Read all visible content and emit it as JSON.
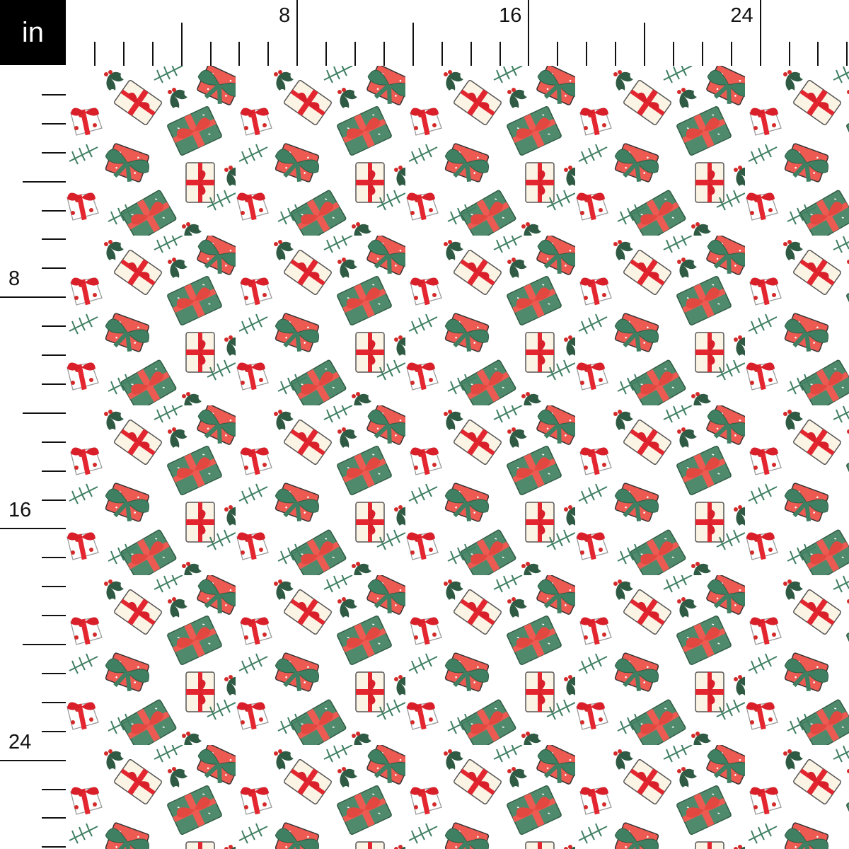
{
  "ruler": {
    "unit": "in",
    "top_labels": [
      "8",
      "16",
      "24"
    ],
    "left_labels": [
      "8",
      "16",
      "24"
    ]
  },
  "pattern": {
    "colors": {
      "background": "#ffffff",
      "red": "#e3262f",
      "coral": "#ec5a52",
      "green": "#3f7f62",
      "dark_green": "#2f5a43",
      "cream": "#fbf3e4"
    },
    "motifs": [
      "gift-box",
      "holly",
      "pine-branch",
      "berries"
    ]
  }
}
